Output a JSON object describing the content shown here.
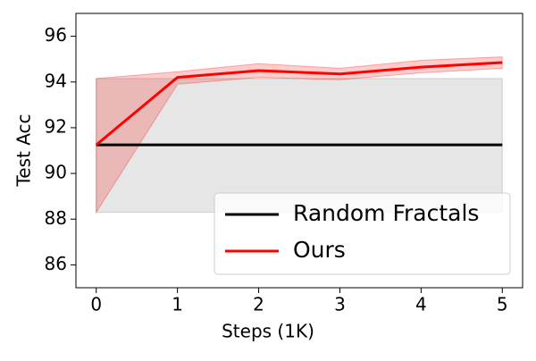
{
  "chart_data": {
    "type": "line",
    "x_label": "Steps (1K)",
    "y_label": "Test Acc",
    "x": [
      0,
      1,
      2,
      3,
      4,
      5
    ],
    "xlim": [
      -0.25,
      5.25
    ],
    "xticks": [
      0,
      1,
      2,
      3,
      4,
      5
    ],
    "ylim": [
      85,
      97
    ],
    "yticks": [
      86,
      88,
      90,
      92,
      94,
      96
    ],
    "legend": "lower right",
    "series": [
      {
        "name": "Random Fractals",
        "color": "#000000",
        "band_color": "#808080",
        "values": [
          91.25,
          91.25,
          91.25,
          91.25,
          91.25,
          91.25
        ],
        "lower": [
          88.3,
          88.3,
          88.3,
          88.3,
          88.3,
          88.3
        ],
        "upper": [
          94.15,
          94.15,
          94.15,
          94.15,
          94.15,
          94.15
        ]
      },
      {
        "name": "Ours",
        "color": "#ff0000",
        "band_color": "#ff0000",
        "values": [
          91.25,
          94.2,
          94.5,
          94.35,
          94.65,
          94.85
        ],
        "lower": [
          88.3,
          93.9,
          94.2,
          94.1,
          94.4,
          94.6
        ],
        "upper": [
          94.15,
          94.45,
          94.8,
          94.6,
          94.95,
          95.1
        ]
      }
    ]
  }
}
